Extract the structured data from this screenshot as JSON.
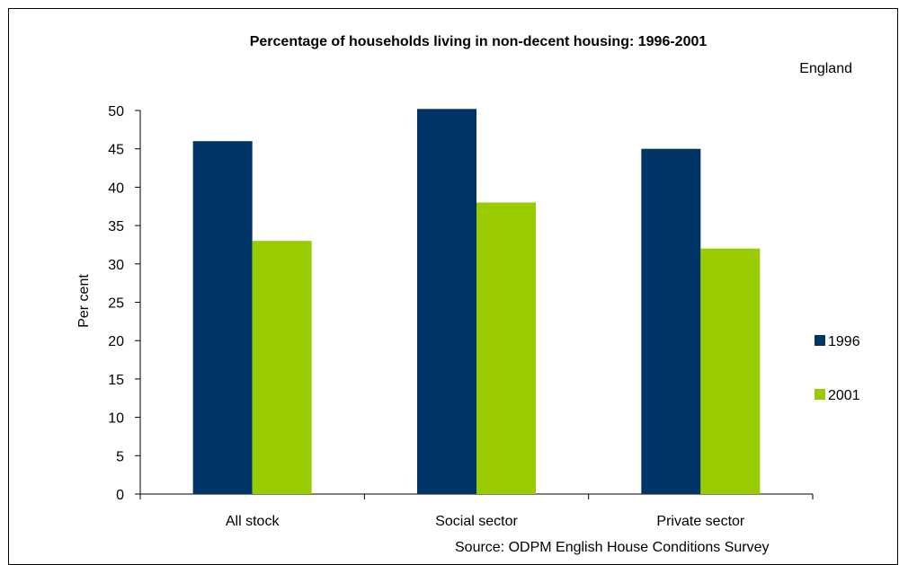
{
  "chart_data": {
    "type": "bar",
    "title": "Percentage of households living in non-decent housing: 1996-2001",
    "subtitle": "England",
    "xlabel": "",
    "ylabel": "Per cent",
    "ylim": [
      0,
      50
    ],
    "yticks": [
      0,
      5,
      10,
      15,
      20,
      25,
      30,
      35,
      40,
      45,
      50
    ],
    "categories": [
      "All stock",
      "Social sector",
      "Private sector"
    ],
    "series": [
      {
        "name": "1996",
        "color": "#003366",
        "values": [
          46,
          50.2,
          45
        ]
      },
      {
        "name": "2001",
        "color": "#99CC00",
        "values": [
          33,
          38,
          32
        ]
      }
    ],
    "grid": false,
    "legend_position": "right",
    "source": "Source: ODPM English House Conditions Survey"
  }
}
